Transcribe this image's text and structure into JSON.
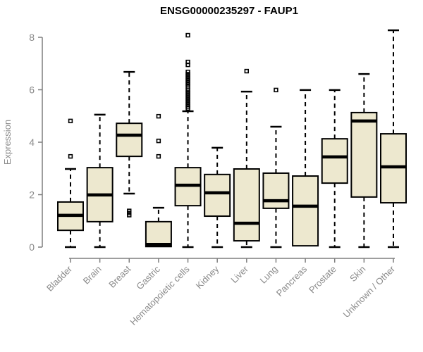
{
  "chart_data": {
    "type": "box",
    "title": "ENSG00000235297 - FAUP1",
    "xlabel": "",
    "ylabel": "Expression",
    "ylim": [
      0,
      8
    ],
    "yticks": [
      0,
      2,
      4,
      6,
      8
    ],
    "grid": false,
    "legend": "none",
    "categories": [
      "Bladder",
      "Brain",
      "Breast",
      "Gastric",
      "Hematopoietic cells",
      "Kidney",
      "Liver",
      "Lung",
      "Pancreas",
      "Prostate",
      "Skin",
      "Unknown / Other"
    ],
    "series": [
      {
        "name": "Bladder",
        "whisker_low": 0,
        "q1": 0.64,
        "median": 1.21,
        "q3": 1.72,
        "whisker_high": 2.98,
        "outliers": [
          4.81,
          3.46
        ]
      },
      {
        "name": "Brain",
        "whisker_low": 0,
        "q1": 0.97,
        "median": 1.99,
        "q3": 3.03,
        "whisker_high": 5.05,
        "outliers": []
      },
      {
        "name": "Breast",
        "whisker_low": 2.04,
        "q1": 3.46,
        "median": 4.27,
        "q3": 4.72,
        "whisker_high": 6.68,
        "outliers": [
          1.38,
          1.3,
          1.22
        ]
      },
      {
        "name": "Gastric",
        "whisker_low": 0,
        "q1": 0.02,
        "median": 0.1,
        "q3": 0.97,
        "whisker_high": 1.5,
        "outliers": [
          4.99,
          4.05,
          3.46
        ]
      },
      {
        "name": "Hematopoietic cells",
        "whisker_low": 0,
        "q1": 1.58,
        "median": 2.36,
        "q3": 3.03,
        "whisker_high": 5.18,
        "outliers": [
          8.08,
          7.06,
          6.95,
          6.68,
          6.6,
          6.52,
          6.44,
          6.36,
          6.28,
          6.2,
          6.12,
          6.0,
          5.92,
          5.84,
          5.76,
          5.68,
          5.6,
          5.52,
          5.44,
          5.36,
          5.29
        ]
      },
      {
        "name": "Kidney",
        "whisker_low": 0,
        "q1": 1.18,
        "median": 2.07,
        "q3": 2.77,
        "whisker_high": 3.79,
        "outliers": []
      },
      {
        "name": "Liver",
        "whisker_low": 0,
        "q1": 0.24,
        "median": 0.91,
        "q3": 2.98,
        "whisker_high": 5.93,
        "outliers": [
          6.71
        ]
      },
      {
        "name": "Lung",
        "whisker_low": 0,
        "q1": 1.48,
        "median": 1.77,
        "q3": 2.82,
        "whisker_high": 4.59,
        "outliers": [
          5.99
        ]
      },
      {
        "name": "Pancreas",
        "whisker_low": 0.02,
        "q1": 0.05,
        "median": 1.56,
        "q3": 2.71,
        "whisker_high": 5.99,
        "outliers": []
      },
      {
        "name": "Prostate",
        "whisker_low": 0,
        "q1": 2.44,
        "median": 3.44,
        "q3": 4.13,
        "whisker_high": 5.99,
        "outliers": []
      },
      {
        "name": "Skin",
        "whisker_low": 0,
        "q1": 1.91,
        "median": 4.81,
        "q3": 5.13,
        "whisker_high": 6.6,
        "outliers": []
      },
      {
        "name": "Unknown / Other",
        "whisker_low": 0,
        "q1": 1.69,
        "median": 3.06,
        "q3": 4.32,
        "whisker_high": 8.27,
        "outliers": []
      }
    ],
    "colors": {
      "box_fill": "#EDE8CF",
      "box_stroke": "#000000",
      "median_line": "#000000",
      "whisker": "#000000",
      "outlier_stroke": "#000000",
      "axis_line": "#7F7F7F",
      "axis_text": "#8A8A8A",
      "title_text": "#000000",
      "background": "#FFFFFF"
    }
  }
}
